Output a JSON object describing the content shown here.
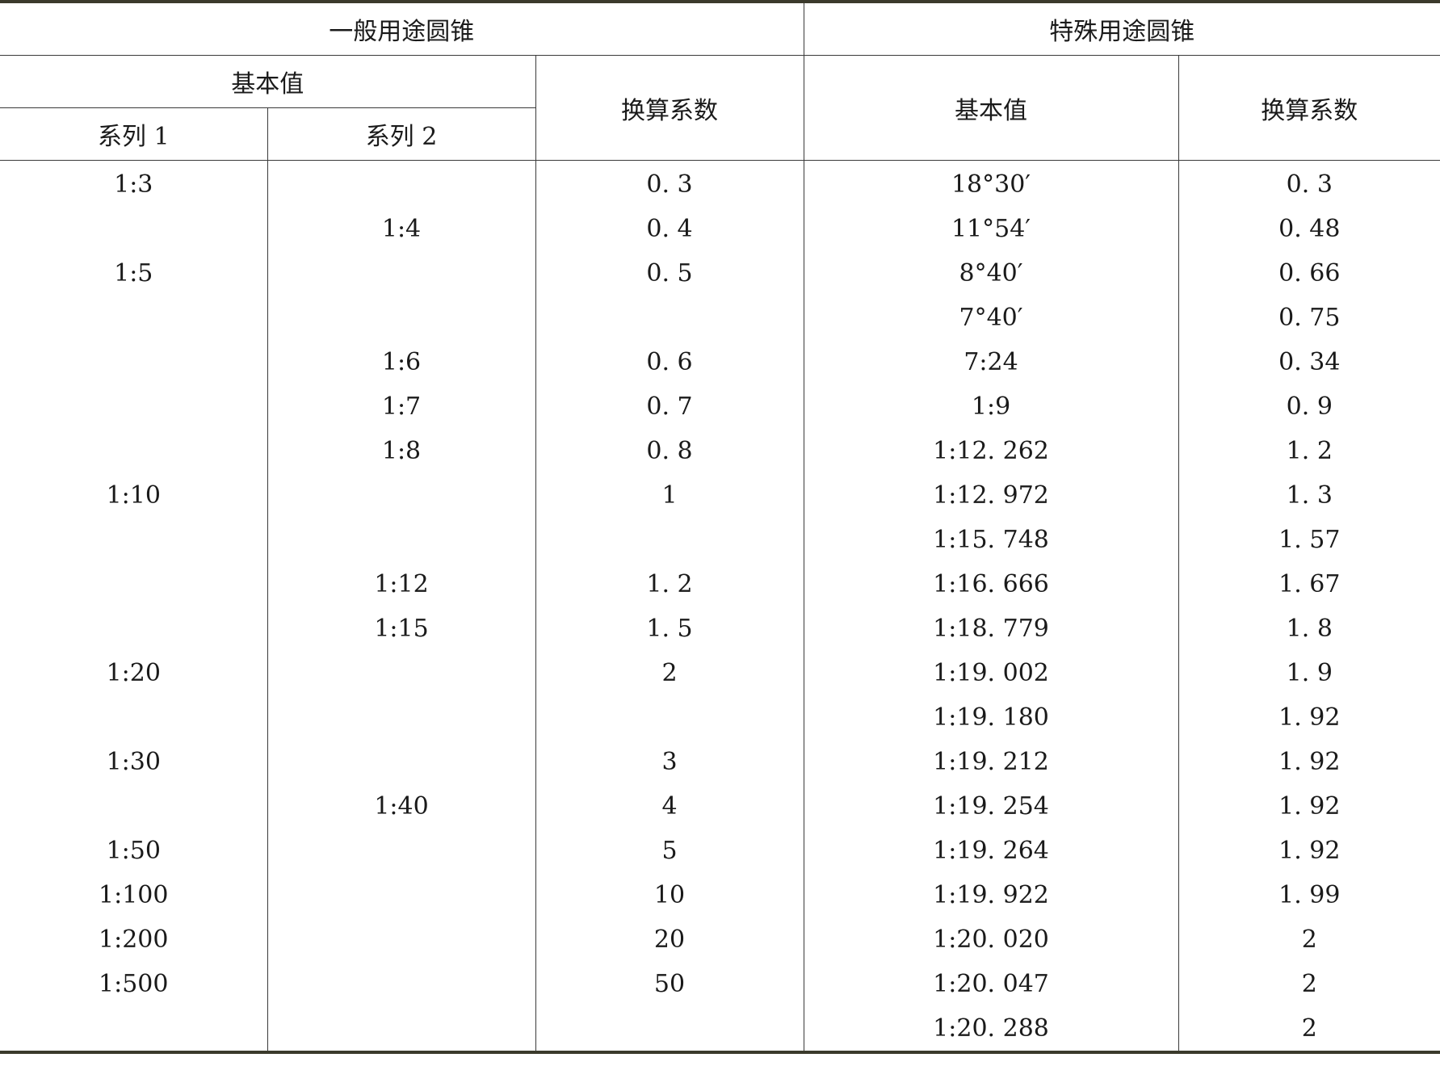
{
  "headers": {
    "general": "一般用途圆锥",
    "special": "特殊用途圆锥",
    "basic_value": "基本值",
    "conversion": "换算系数",
    "series1": "系列 1",
    "series2": "系列 2",
    "special_basic_value": "基本值",
    "special_conversion": "换算系数"
  },
  "rows": [
    {
      "s1": "1:3",
      "s2": "",
      "c1": "0. 3",
      "sv": "18°30′",
      "c2": "0. 3"
    },
    {
      "s1": "",
      "s2": "1:4",
      "c1": "0. 4",
      "sv": "11°54′",
      "c2": "0. 48"
    },
    {
      "s1": "1:5",
      "s2": "",
      "c1": "0. 5",
      "sv": "8°40′",
      "c2": "0. 66"
    },
    {
      "s1": "",
      "s2": "",
      "c1": "",
      "sv": "7°40′",
      "c2": "0. 75"
    },
    {
      "s1": "",
      "s2": "1:6",
      "c1": "0. 6",
      "sv": "7:24",
      "c2": "0. 34"
    },
    {
      "s1": "",
      "s2": "1:7",
      "c1": "0. 7",
      "sv": "1:9",
      "c2": "0. 9"
    },
    {
      "s1": "",
      "s2": "1:8",
      "c1": "0. 8",
      "sv": "1:12. 262",
      "c2": "1. 2"
    },
    {
      "s1": "1:10",
      "s2": "",
      "c1": "1",
      "sv": "1:12. 972",
      "c2": "1. 3"
    },
    {
      "s1": "",
      "s2": "",
      "c1": "",
      "sv": "1:15. 748",
      "c2": "1. 57"
    },
    {
      "s1": "",
      "s2": "1:12",
      "c1": "1. 2",
      "sv": "1:16. 666",
      "c2": "1. 67"
    },
    {
      "s1": "",
      "s2": "1:15",
      "c1": "1. 5",
      "sv": "1:18. 779",
      "c2": "1. 8"
    },
    {
      "s1": "1:20",
      "s2": "",
      "c1": "2",
      "sv": "1:19. 002",
      "c2": "1. 9"
    },
    {
      "s1": "",
      "s2": "",
      "c1": "",
      "sv": "1:19. 180",
      "c2": "1. 92"
    },
    {
      "s1": "1:30",
      "s2": "",
      "c1": "3",
      "sv": "1:19. 212",
      "c2": "1. 92"
    },
    {
      "s1": "",
      "s2": "1:40",
      "c1": "4",
      "sv": "1:19. 254",
      "c2": "1. 92"
    },
    {
      "s1": "1:50",
      "s2": "",
      "c1": "5",
      "sv": "1:19. 264",
      "c2": "1. 92"
    },
    {
      "s1": "1:100",
      "s2": "",
      "c1": "10",
      "sv": "1:19. 922",
      "c2": "1. 99"
    },
    {
      "s1": "1:200",
      "s2": "",
      "c1": "20",
      "sv": "1:20. 020",
      "c2": "2"
    },
    {
      "s1": "1:500",
      "s2": "",
      "c1": "50",
      "sv": "1:20. 047",
      "c2": "2"
    },
    {
      "s1": "",
      "s2": "",
      "c1": "",
      "sv": "1:20. 288",
      "c2": "2"
    }
  ]
}
